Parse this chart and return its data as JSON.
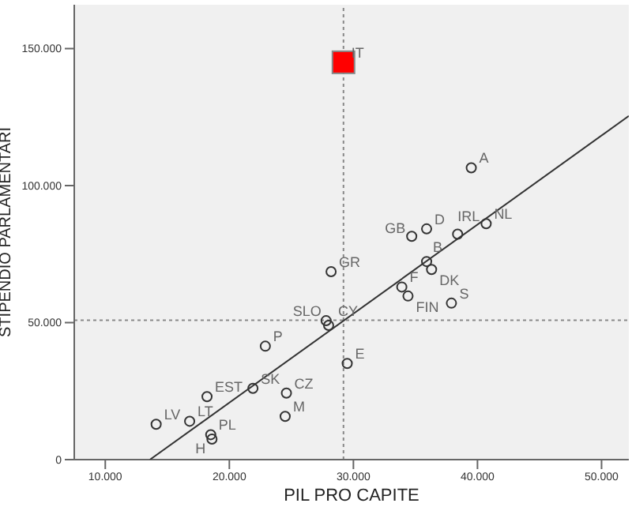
{
  "chart_data": {
    "type": "scatter",
    "xlabel": "PIL PRO CAPITE",
    "ylabel": "STIPENDIO PARLAMENTARI",
    "xlim": [
      7500,
      52200
    ],
    "ylim": [
      0,
      166000
    ],
    "xticks": [
      {
        "value": 10000,
        "label": "10.000"
      },
      {
        "value": 20000,
        "label": "20.000"
      },
      {
        "value": 30000,
        "label": "30.000"
      },
      {
        "value": 40000,
        "label": "40.000"
      },
      {
        "value": 50000,
        "label": "50.000"
      }
    ],
    "yticks": [
      0,
      {
        "value": 50000,
        "label": "50.000"
      },
      {
        "value": 100000,
        "label": "100.000"
      },
      {
        "value": 150000,
        "label": "150.000"
      }
    ],
    "grid": false,
    "legend": false,
    "series": [
      {
        "type": "scatter",
        "color": "#333333",
        "marker": "circle",
        "x": [
          14100,
          16800,
          18200,
          18500,
          18600,
          21900,
          22900,
          24600,
          24500,
          28200,
          27800,
          28000,
          29500,
          39500,
          34700,
          35900,
          38400,
          40700,
          35900,
          36300,
          33900,
          34400,
          37900
        ],
        "values": [
          12900,
          14000,
          23000,
          9100,
          7500,
          26000,
          41400,
          24300,
          15800,
          68600,
          50700,
          49000,
          35100,
          106500,
          81500,
          84200,
          82300,
          86100,
          72300,
          69400,
          63000,
          59700,
          57100
        ]
      },
      {
        "type": "scatter",
        "color": "#ff0000",
        "marker": "square",
        "x": [
          29200
        ],
        "values": [
          145000
        ]
      },
      {
        "type": "line",
        "color": "#333333",
        "x": [
          13600,
          52200
        ],
        "values": [
          0,
          125400
        ]
      }
    ],
    "ref_lines": [
      {
        "axis": "x",
        "value": 29200,
        "color": "#888888",
        "line_style": "dotted"
      },
      {
        "axis": "y",
        "value": 50900,
        "color": "#888888",
        "line_style": "dotted"
      }
    ],
    "annotations": [
      {
        "text": "LV",
        "x": 14100,
        "y": 12900
      },
      {
        "text": "LT",
        "x": 16800,
        "y": 14000
      },
      {
        "text": "EST",
        "x": 18200,
        "y": 23000
      },
      {
        "text": "PL",
        "x": 18500,
        "y": 9100
      },
      {
        "text": "H",
        "x": 18600,
        "y": 7500
      },
      {
        "text": "SK",
        "x": 21900,
        "y": 26000
      },
      {
        "text": "P",
        "x": 22900,
        "y": 41400
      },
      {
        "text": "CZ",
        "x": 24600,
        "y": 24300
      },
      {
        "text": "M",
        "x": 24500,
        "y": 15800
      },
      {
        "text": "GR",
        "x": 28200,
        "y": 68600
      },
      {
        "text": "SLO",
        "x": 27800,
        "y": 50700
      },
      {
        "text": "CY",
        "x": 28000,
        "y": 49000
      },
      {
        "text": "E",
        "x": 29500,
        "y": 35100
      },
      {
        "text": "IT",
        "x": 29200,
        "y": 145000
      },
      {
        "text": "A",
        "x": 39500,
        "y": 106500
      },
      {
        "text": "GB",
        "x": 34700,
        "y": 81500
      },
      {
        "text": "D",
        "x": 35900,
        "y": 84200
      },
      {
        "text": "IRL",
        "x": 38400,
        "y": 82300
      },
      {
        "text": "NL",
        "x": 40700,
        "y": 86100
      },
      {
        "text": "B",
        "x": 35900,
        "y": 72300
      },
      {
        "text": "DK",
        "x": 36300,
        "y": 69400
      },
      {
        "text": "F",
        "x": 33900,
        "y": 63000
      },
      {
        "text": "FIN",
        "x": 34400,
        "y": 59700
      },
      {
        "text": "S",
        "x": 37900,
        "y": 57100
      }
    ]
  }
}
